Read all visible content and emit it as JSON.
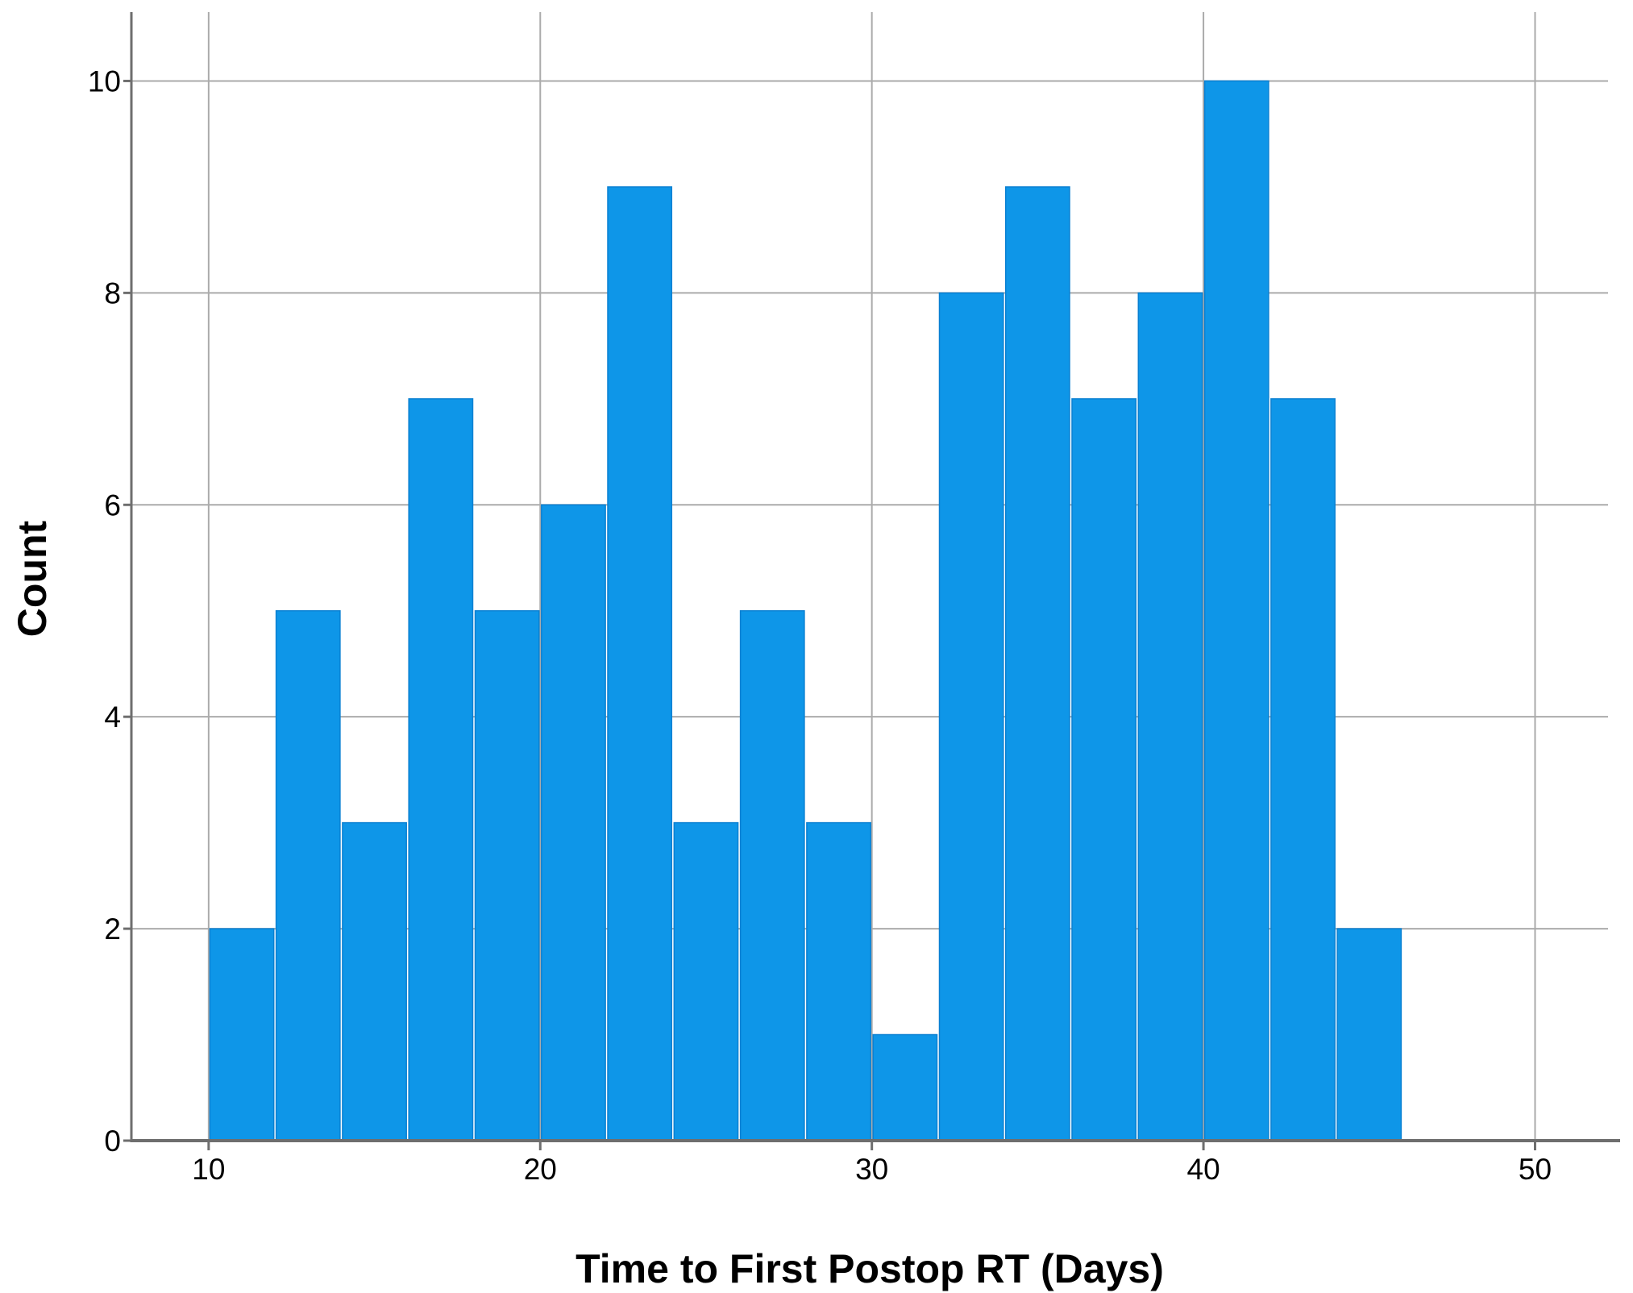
{
  "chart_data": {
    "type": "bar",
    "subtype": "histogram",
    "title": "",
    "xlabel": "Time to First Postop RT (Days)",
    "ylabel": "Count",
    "bin_edges": [
      10,
      12,
      14,
      16,
      18,
      20,
      22,
      24,
      26,
      28,
      30,
      32,
      34,
      36,
      38,
      40,
      42,
      44,
      46
    ],
    "values": [
      2,
      5,
      3,
      7,
      5,
      6,
      9,
      3,
      5,
      3,
      1,
      8,
      9,
      7,
      8,
      10,
      7,
      2
    ],
    "x_ticks": [
      10,
      20,
      30,
      40,
      50
    ],
    "x_tick_labels": [
      "10",
      "20",
      "30",
      "40",
      "50"
    ],
    "y_ticks": [
      0,
      2,
      4,
      6,
      8,
      10
    ],
    "y_tick_labels": [
      "0",
      "2",
      "4",
      "6",
      "8",
      "10"
    ],
    "xlim": [
      7.67,
      52.2
    ],
    "ylim": [
      0,
      10.65
    ],
    "grid": true,
    "legend": false,
    "colors": {
      "bar_fill": "#0E96E8",
      "bar_edge": "#0A80D2",
      "grid_line": "#ABABAB",
      "axis_line": "#6E6E6E",
      "text": "#000000",
      "background": "#FFFFFF"
    }
  }
}
